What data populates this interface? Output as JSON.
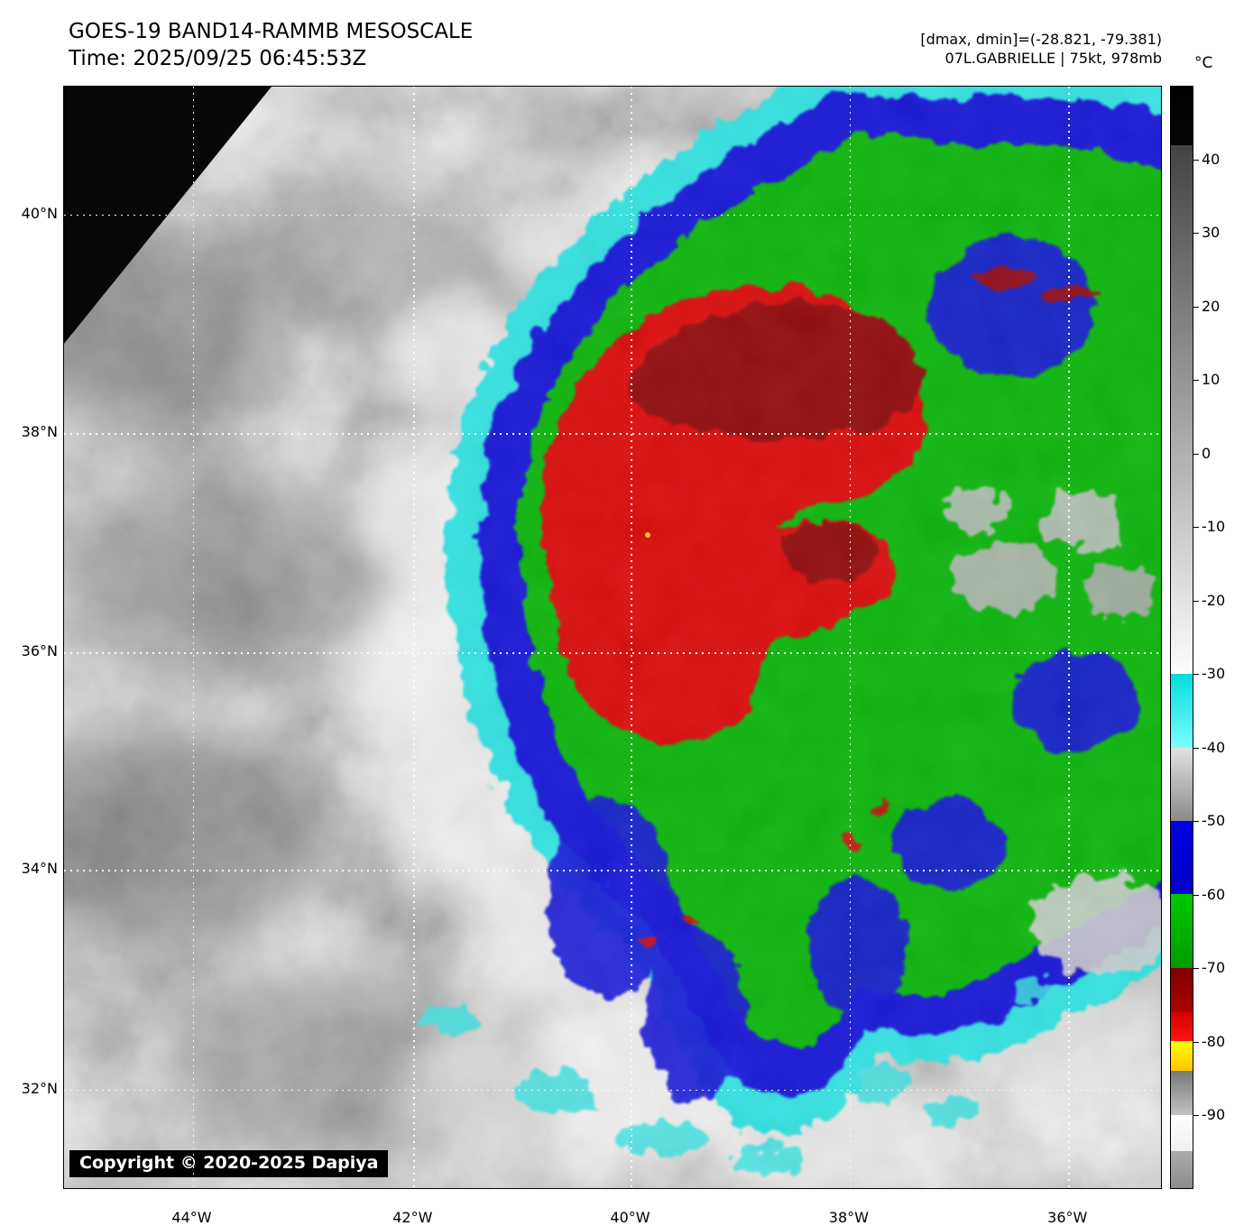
{
  "header": {
    "title": "GOES-19 BAND14-RAMMB MESOSCALE",
    "time": "Time: 2025/09/25 06:45:53Z",
    "dmax_dmin": "[dmax, dmin]=(-28.821, -79.381)",
    "storm_info": "07L.GABRIELLE | 75kt, 978mb"
  },
  "colorbar": {
    "unit": "°C",
    "domain": [
      50,
      -100
    ],
    "ticks": [
      "40",
      "30",
      "20",
      "10",
      "0",
      "-10",
      "-20",
      "-30",
      "-40",
      "-50",
      "-60",
      "-70",
      "-80",
      "-90"
    ],
    "segments": [
      {
        "from": 50,
        "to": 42,
        "colors": [
          "#000000",
          "#050505"
        ]
      },
      {
        "from": 42,
        "to": -30,
        "colors": [
          "#434343",
          "#fdfdfd"
        ]
      },
      {
        "from": -30,
        "to": -40,
        "colors": [
          "#00dede",
          "#7dfcfc"
        ]
      },
      {
        "from": -40,
        "to": -50,
        "colors": [
          "#e2e2e2",
          "#8a8a8a"
        ]
      },
      {
        "from": -50,
        "to": -60,
        "colors": [
          "#0000e2",
          "#0000c6"
        ]
      },
      {
        "from": -60,
        "to": -70,
        "colors": [
          "#00c800",
          "#009c00"
        ]
      },
      {
        "from": -70,
        "to": -76,
        "colors": [
          "#7d0000",
          "#ad0000"
        ]
      },
      {
        "from": -76,
        "to": -80,
        "colors": [
          "#d40000",
          "#ff1414"
        ]
      },
      {
        "from": -80,
        "to": -84,
        "colors": [
          "#ffff00",
          "#ffc400"
        ]
      },
      {
        "from": -84,
        "to": -90,
        "colors": [
          "#787878",
          "#c2c2c2"
        ]
      },
      {
        "from": -90,
        "to": -95,
        "colors": [
          "#ffffff",
          "#efefef"
        ]
      },
      {
        "from": -95,
        "to": -100,
        "colors": [
          "#ababab",
          "#8d8d8d"
        ]
      }
    ]
  },
  "map": {
    "lat_labels": [
      "40°N",
      "38°N",
      "36°N",
      "34°N",
      "32°N"
    ],
    "lon_labels": [
      "44°W",
      "42°W",
      "40°W",
      "38°W",
      "36°W"
    ],
    "copyright": "Copyright © 2020-2025 Dapiya"
  }
}
